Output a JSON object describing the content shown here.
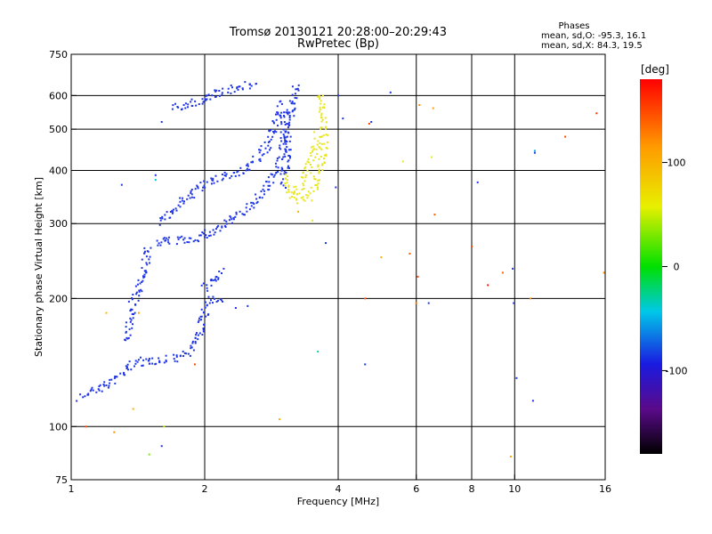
{
  "chart_data": {
    "type": "scatter",
    "title": "Tromsø 20130121 20:28:00–20:29:43",
    "subtitle": "RwPretec (Bp)",
    "xlabel": "Frequency [MHz]",
    "ylabel": "Stationary phase Virtual Height [km]",
    "x_scale": "log",
    "y_scale": "log",
    "xlim": [
      1,
      16
    ],
    "ylim": [
      75,
      750
    ],
    "x_ticks": [
      "1",
      "2",
      "4",
      "6",
      "8",
      "10",
      "16"
    ],
    "x_tick_values": [
      1,
      2,
      4,
      6,
      8,
      10,
      16
    ],
    "y_ticks": [
      "75",
      "100",
      "200",
      "300",
      "400",
      "500",
      "600",
      "750"
    ],
    "y_tick_values": [
      75,
      100,
      200,
      300,
      400,
      500,
      600,
      750
    ],
    "x_grid": [
      2,
      4,
      6,
      8,
      10
    ],
    "y_grid": [
      100,
      200,
      300,
      400,
      500,
      600
    ],
    "stats": {
      "heading": "Phases",
      "line_o": "mean, sd,O: -95.3, 16.1",
      "line_x": "mean, sd,X:  84.3, 19.5"
    },
    "colorbar": {
      "label": "[deg]",
      "min": -180,
      "max": 180,
      "tick_labels": [
        "100",
        "0",
        "-100"
      ],
      "tick_values": [
        100,
        0,
        -100
      ]
    },
    "series": [
      {
        "name": "O",
        "phase": -95,
        "color": "#1f35e6",
        "traces": [
          [
            [
              1.05,
              117
            ],
            [
              1.12,
              122
            ],
            [
              1.18,
              124
            ],
            [
              1.24,
              128
            ],
            [
              1.3,
              133
            ],
            [
              1.34,
              138
            ],
            [
              1.4,
              141
            ],
            [
              1.5,
              143
            ],
            [
              1.6,
              143
            ],
            [
              1.7,
              145
            ],
            [
              1.8,
              148
            ],
            [
              1.88,
              155
            ],
            [
              1.93,
              163
            ],
            [
              1.97,
              172
            ],
            [
              2.0,
              185
            ],
            [
              2.05,
              195
            ],
            [
              2.12,
              200
            ],
            [
              2.2,
              198
            ]
          ],
          [
            [
              1.32,
              160
            ],
            [
              1.35,
              175
            ],
            [
              1.38,
              195
            ],
            [
              1.42,
              210
            ],
            [
              1.45,
              230
            ],
            [
              1.48,
              250
            ],
            [
              1.5,
              265
            ]
          ],
          [
            [
              1.55,
              272
            ],
            [
              1.7,
              273
            ],
            [
              1.85,
              275
            ],
            [
              2.0,
              282
            ],
            [
              2.15,
              292
            ],
            [
              2.3,
              305
            ],
            [
              2.45,
              320
            ],
            [
              2.6,
              340
            ],
            [
              2.75,
              365
            ],
            [
              2.85,
              385
            ],
            [
              2.92,
              400
            ],
            [
              2.97,
              420
            ],
            [
              3.0,
              460
            ],
            [
              3.02,
              500
            ],
            [
              3.03,
              560
            ]
          ],
          [
            [
              1.6,
              300
            ],
            [
              1.72,
              330
            ],
            [
              1.85,
              350
            ],
            [
              2.0,
              370
            ],
            [
              2.2,
              385
            ],
            [
              2.4,
              395
            ],
            [
              2.6,
              420
            ],
            [
              2.75,
              450
            ],
            [
              2.85,
              490
            ],
            [
              2.92,
              540
            ],
            [
              2.96,
              580
            ]
          ],
          [
            [
              1.7,
              560
            ],
            [
              1.85,
              570
            ],
            [
              2.0,
              590
            ],
            [
              2.15,
              610
            ],
            [
              2.3,
              620
            ],
            [
              2.45,
              630
            ],
            [
              2.6,
              650
            ]
          ],
          [
            [
              3.02,
              370
            ],
            [
              3.05,
              420
            ],
            [
              3.08,
              480
            ],
            [
              3.12,
              540
            ],
            [
              3.18,
              600
            ],
            [
              3.22,
              640
            ]
          ],
          [
            [
              2.0,
              210
            ],
            [
              2.1,
              222
            ],
            [
              2.2,
              232
            ]
          ]
        ],
        "points": [
          [
            1.6,
            520
          ],
          [
            1.55,
            390
          ],
          [
            1.3,
            370
          ],
          [
            1.45,
            220
          ],
          [
            2.35,
            190
          ],
          [
            2.5,
            192
          ],
          [
            3.75,
            270
          ],
          [
            3.95,
            365
          ],
          [
            4.1,
            530
          ],
          [
            4.75,
            520
          ],
          [
            5.25,
            610
          ],
          [
            6.4,
            195
          ],
          [
            8.25,
            375
          ],
          [
            9.9,
            235
          ],
          [
            9.95,
            195
          ],
          [
            10.1,
            130
          ],
          [
            11.0,
            115
          ],
          [
            11.1,
            440
          ],
          [
            4.6,
            140
          ],
          [
            1.6,
            90
          ],
          [
            1.2,
            125
          ],
          [
            4.0,
            600
          ]
        ]
      },
      {
        "name": "X",
        "phase": 84,
        "color": "#e8e620",
        "traces": [
          [
            [
              3.0,
              390
            ],
            [
              3.1,
              360
            ],
            [
              3.25,
              340
            ],
            [
              3.4,
              345
            ],
            [
              3.55,
              365
            ],
            [
              3.65,
              400
            ],
            [
              3.7,
              450
            ],
            [
              3.72,
              510
            ],
            [
              3.7,
              560
            ],
            [
              3.66,
              610
            ]
          ],
          [
            [
              3.2,
              350
            ],
            [
              3.35,
              385
            ],
            [
              3.5,
              430
            ],
            [
              3.6,
              490
            ]
          ]
        ],
        "points": [
          [
            3.5,
            305
          ],
          [
            5.6,
            420
          ],
          [
            6.5,
            430
          ]
        ]
      }
    ],
    "scattered": [
      {
        "x": 1.08,
        "y": 100,
        "phase": 150
      },
      {
        "x": 1.25,
        "y": 97,
        "phase": 120
      },
      {
        "x": 1.38,
        "y": 110,
        "phase": 100
      },
      {
        "x": 1.5,
        "y": 86,
        "phase": 30
      },
      {
        "x": 1.62,
        "y": 100,
        "phase": 45
      },
      {
        "x": 1.42,
        "y": 185,
        "phase": 110
      },
      {
        "x": 1.2,
        "y": 185,
        "phase": 95
      },
      {
        "x": 2.95,
        "y": 104,
        "phase": 100
      },
      {
        "x": 3.25,
        "y": 320,
        "phase": 100
      },
      {
        "x": 3.6,
        "y": 150,
        "phase": -30
      },
      {
        "x": 4.6,
        "y": 200,
        "phase": 140
      },
      {
        "x": 4.7,
        "y": 515,
        "phase": 150
      },
      {
        "x": 5.0,
        "y": 250,
        "phase": 100
      },
      {
        "x": 5.8,
        "y": 255,
        "phase": 140
      },
      {
        "x": 6.1,
        "y": 570,
        "phase": 120
      },
      {
        "x": 6.55,
        "y": 560,
        "phase": 110
      },
      {
        "x": 6.6,
        "y": 315,
        "phase": 140
      },
      {
        "x": 6.05,
        "y": 225,
        "phase": 150
      },
      {
        "x": 6.0,
        "y": 195,
        "phase": 130
      },
      {
        "x": 8.0,
        "y": 265,
        "phase": 150
      },
      {
        "x": 8.7,
        "y": 215,
        "phase": 170
      },
      {
        "x": 9.4,
        "y": 230,
        "phase": 140
      },
      {
        "x": 9.8,
        "y": 85,
        "phase": 110
      },
      {
        "x": 10.85,
        "y": 200,
        "phase": 120
      },
      {
        "x": 13.0,
        "y": 480,
        "phase": 150
      },
      {
        "x": 15.3,
        "y": 545,
        "phase": 160
      },
      {
        "x": 15.9,
        "y": 230,
        "phase": 120
      },
      {
        "x": 11.1,
        "y": 445,
        "phase": -50
      },
      {
        "x": 1.9,
        "y": 140,
        "phase": 150
      },
      {
        "x": 1.55,
        "y": 380,
        "phase": -40
      }
    ]
  }
}
